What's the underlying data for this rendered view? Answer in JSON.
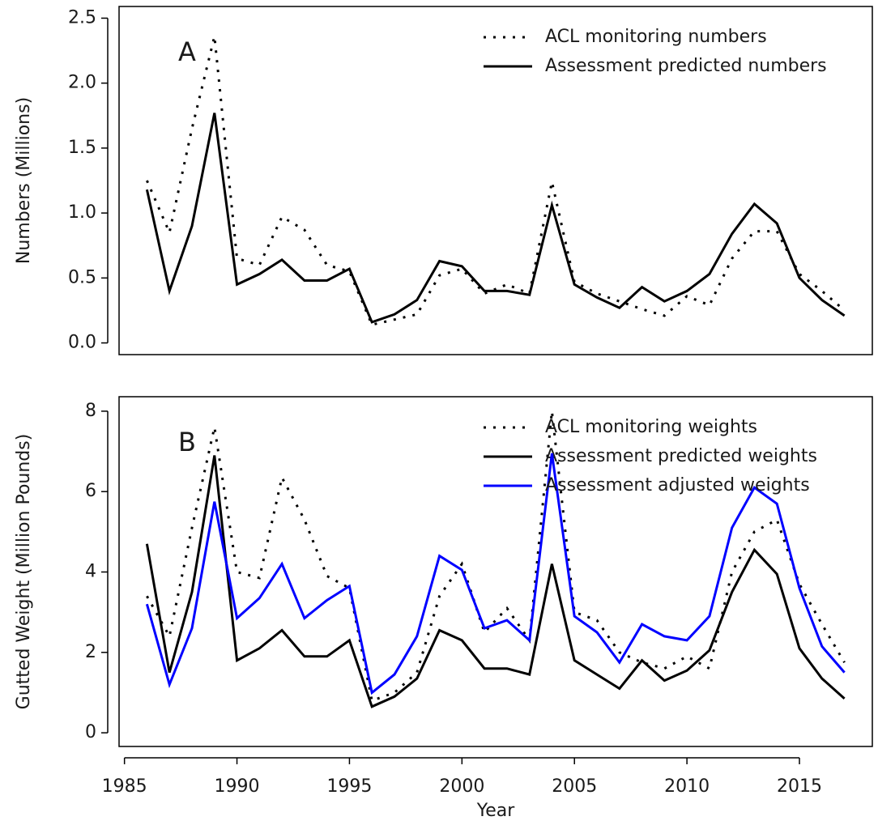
{
  "chart_data": [
    {
      "type": "line",
      "annotation": "A",
      "ylabel": "Numbers (Millions)",
      "x": [
        1986,
        1987,
        1988,
        1989,
        1990,
        1991,
        1992,
        1993,
        1994,
        1995,
        1996,
        1997,
        1998,
        1999,
        2000,
        2001,
        2002,
        2003,
        2004,
        2005,
        2006,
        2007,
        2008,
        2009,
        2010,
        2011,
        2012,
        2013,
        2014,
        2015,
        2016,
        2017
      ],
      "xlim": [
        1984.76,
        2018.24
      ],
      "ylim": [
        -0.09,
        2.59
      ],
      "yticks": [
        {
          "value": 0,
          "label": "0.0"
        },
        0.5,
        {
          "value": 1,
          "label": "1.0"
        },
        1.5,
        {
          "value": 2,
          "label": "2.0"
        },
        2.5
      ],
      "legend": "top-right",
      "series": [
        {
          "name": "ACL monitoring numbers",
          "color": "#000000",
          "linestyle": "dotted",
          "values": [
            1.25,
            0.85,
            1.65,
            2.36,
            0.65,
            0.6,
            0.97,
            0.87,
            0.6,
            0.55,
            0.14,
            0.18,
            0.22,
            0.52,
            0.57,
            0.38,
            0.45,
            0.38,
            1.24,
            0.47,
            0.38,
            0.32,
            0.26,
            0.21,
            0.36,
            0.29,
            0.65,
            0.86,
            0.86,
            0.53,
            0.4,
            0.25
          ]
        },
        {
          "name": "Assessment predicted numbers",
          "color": "#000000",
          "linestyle": "solid",
          "values": [
            1.18,
            0.4,
            0.9,
            1.77,
            0.45,
            0.53,
            0.64,
            0.48,
            0.48,
            0.57,
            0.16,
            0.22,
            0.33,
            0.63,
            0.59,
            0.4,
            0.4,
            0.37,
            1.06,
            0.45,
            0.35,
            0.27,
            0.43,
            0.32,
            0.4,
            0.53,
            0.84,
            1.07,
            0.92,
            0.5,
            0.33,
            0.21
          ]
        }
      ]
    },
    {
      "type": "line",
      "annotation": "B",
      "ylabel": "Gutted Weight (Million Pounds)",
      "xlabel": "Year",
      "x": [
        1986,
        1987,
        1988,
        1989,
        1990,
        1991,
        1992,
        1993,
        1994,
        1995,
        1996,
        1997,
        1998,
        1999,
        2000,
        2001,
        2002,
        2003,
        2004,
        2005,
        2006,
        2007,
        2008,
        2009,
        2010,
        2011,
        2012,
        2013,
        2014,
        2015,
        2016,
        2017
      ],
      "xlim": [
        1984.76,
        2018.24
      ],
      "xticks": [
        1985,
        1990,
        1995,
        2000,
        2005,
        2010,
        2015
      ],
      "ylim": [
        -0.34,
        8.36
      ],
      "yticks": [
        0,
        2,
        4,
        6,
        8
      ],
      "legend": "top-right",
      "series": [
        {
          "name": "ACL monitoring weights",
          "color": "#000000",
          "linestyle": "dotted",
          "values": [
            3.4,
            2.4,
            5.1,
            7.6,
            4.0,
            3.85,
            6.35,
            5.3,
            3.9,
            3.6,
            0.8,
            1.0,
            1.5,
            3.4,
            4.2,
            2.5,
            3.1,
            2.3,
            8.0,
            3.0,
            2.8,
            2.0,
            1.75,
            1.6,
            1.9,
            1.6,
            4.0,
            5.0,
            5.3,
            3.7,
            2.7,
            1.75
          ]
        },
        {
          "name": "Assessment predicted weights",
          "color": "#000000",
          "linestyle": "solid",
          "values": [
            4.7,
            1.5,
            3.5,
            6.9,
            1.8,
            2.1,
            2.55,
            1.9,
            1.9,
            2.3,
            0.65,
            0.9,
            1.35,
            2.55,
            2.3,
            1.6,
            1.6,
            1.45,
            4.2,
            1.8,
            1.45,
            1.1,
            1.8,
            1.3,
            1.55,
            2.05,
            3.5,
            4.55,
            3.95,
            2.1,
            1.35,
            0.85
          ]
        },
        {
          "name": "Assessment adjusted weights",
          "color": "#0000ff",
          "linestyle": "solid",
          "values": [
            3.2,
            1.2,
            2.6,
            5.75,
            2.85,
            3.35,
            4.2,
            2.85,
            3.3,
            3.65,
            1.0,
            1.45,
            2.4,
            4.4,
            4.05,
            2.6,
            2.8,
            2.3,
            6.95,
            2.9,
            2.5,
            1.75,
            2.7,
            2.4,
            2.3,
            2.9,
            5.1,
            6.1,
            5.7,
            3.6,
            2.15,
            1.5
          ]
        }
      ]
    }
  ]
}
